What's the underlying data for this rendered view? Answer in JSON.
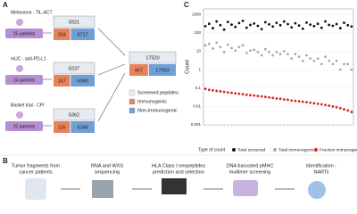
{
  "panels": {
    "a": {
      "label": "A",
      "cohorts": [
        {
          "name": "Melanoma - TIL-ACT",
          "patients": "25 patients",
          "screened": 5921,
          "immunogenic": 204,
          "non_immunogenic": 5717
        },
        {
          "name": "mUC - anti-PD-L1",
          "patients": "24 patients",
          "screened": 6237,
          "immunogenic": 147,
          "non_immunogenic": 6090
        },
        {
          "name": "Basket trial - CPI",
          "patients": "20 patients",
          "screened": 5362,
          "immunogenic": 116,
          "non_immunogenic": 5246
        }
      ],
      "total": {
        "screened": 17520,
        "immunogenic": 467,
        "non_immunogenic": 17053
      },
      "legend": [
        "Screened peptides",
        "Immunogenic",
        "Non-immunogenic"
      ]
    },
    "b": {
      "label": "B",
      "steps": [
        [
          "Tumor fragments from",
          "cancer patients"
        ],
        [
          "RNA and WXS",
          "sequencing"
        ],
        [
          "HLA Class I neopeptides",
          "prediction and selection"
        ],
        [
          "DNA barcoded pMHC",
          "multimer screening"
        ],
        [
          "Identification -",
          "NARTs"
        ]
      ]
    }
  },
  "chart_data": {
    "type": "scatter",
    "panel_label": "C",
    "y_label": "Count",
    "legend_title": "Type of count",
    "log_y": true,
    "grid": true,
    "ylim": [
      0.001,
      2000
    ],
    "yticks": [
      1000,
      100,
      10,
      1,
      0.1,
      0.01,
      0.001
    ],
    "categories": [
      null,
      null,
      null,
      null,
      null,
      null,
      null,
      null,
      null,
      null,
      null,
      null,
      null,
      null,
      null,
      null,
      null,
      null,
      null,
      null,
      null,
      null,
      null,
      null,
      null,
      null,
      null,
      null,
      null,
      null,
      null,
      null,
      null,
      null,
      null,
      null,
      null,
      null,
      null,
      null
    ],
    "series": [
      {
        "name": "Total screened",
        "color": "#111111",
        "values": [
          230,
          310,
          180,
          420,
          260,
          150,
          390,
          280,
          210,
          340,
          450,
          190,
          270,
          320,
          240,
          160,
          380,
          290,
          220,
          350,
          260,
          410,
          300,
          200,
          330,
          250,
          170,
          360,
          280,
          230,
          310,
          190,
          420,
          270,
          240,
          300,
          180,
          350,
          260,
          220
        ]
      },
      {
        "name": "Total immunogenic",
        "color": "#aaaaaa",
        "values": [
          21,
          25,
          14,
          29,
          17,
          9,
          23,
          15,
          11,
          17,
          21,
          8,
          11,
          12,
          9,
          6,
          13,
          9,
          6,
          9,
          7,
          10,
          7,
          4,
          7,
          5,
          3,
          6,
          4,
          3,
          4,
          2,
          5,
          3,
          2,
          3,
          1,
          2,
          2,
          1
        ]
      },
      {
        "name": "Fraction immunogenic",
        "color": "#d7261e",
        "values": [
          0.09,
          0.08,
          0.075,
          0.07,
          0.066,
          0.062,
          0.058,
          0.055,
          0.052,
          0.049,
          0.046,
          0.043,
          0.041,
          0.039,
          0.037,
          0.035,
          0.033,
          0.031,
          0.029,
          0.027,
          0.026,
          0.024,
          0.023,
          0.021,
          0.02,
          0.019,
          0.018,
          0.017,
          0.016,
          0.015,
          0.014,
          0.013,
          0.012,
          0.011,
          0.01,
          0.009,
          0.008,
          0.007,
          0.006,
          0.005
        ]
      }
    ]
  }
}
